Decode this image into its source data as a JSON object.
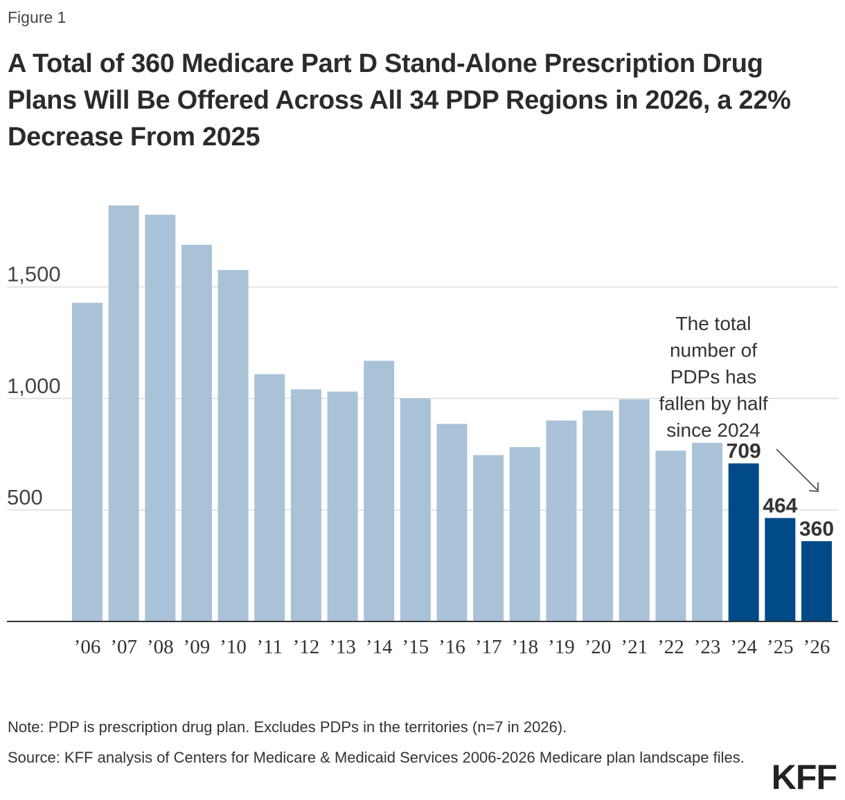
{
  "figure_label": "Figure 1",
  "title": "A Total of 360 Medicare Part D Stand-Alone Prescription Drug Plans Will Be Offered Across All 34 PDP Regions in 2026, a 22% Decrease From 2025",
  "note": "Note: PDP is prescription drug plan. Excludes PDPs in the territories (n=7 in 2026).",
  "source": "Source: KFF analysis of Centers for Medicare & Medicaid Services 2006-2026 Medicare plan landscape files.",
  "logo": "KFF",
  "colors": {
    "light_bar": "#a9c2d7",
    "dark_bar": "#004b87",
    "grid": "#cccccc",
    "axis": "#333333"
  },
  "chart_data": {
    "type": "bar",
    "title": "A Total of 360 Medicare Part D Stand-Alone Prescription Drug Plans Will Be Offered Across All 34 PDP Regions in 2026, a 22% Decrease From 2025",
    "categories": [
      "’06",
      "’07",
      "’08",
      "’09",
      "’10",
      "’11",
      "’12",
      "’13",
      "’14",
      "’15",
      "’16",
      "’17",
      "’18",
      "’19",
      "’20",
      "’21",
      "’22",
      "’23",
      "’24",
      "’25",
      "’26"
    ],
    "values": [
      1429,
      1866,
      1824,
      1689,
      1576,
      1109,
      1041,
      1031,
      1169,
      1001,
      886,
      746,
      782,
      901,
      946,
      996,
      766,
      801,
      709,
      464,
      360
    ],
    "highlighted": [
      "’24",
      "’25",
      "’26"
    ],
    "data_labels": {
      "’24": "709",
      "’25": "464",
      "’26": "360"
    },
    "ylim": [
      0,
      1870
    ],
    "yticks": [
      500,
      1000,
      1500
    ],
    "ytick_labels": [
      "500",
      "1,000",
      "1,500"
    ],
    "xlabel": "",
    "ylabel": "",
    "annotation": {
      "lines": [
        "The total",
        "number of",
        "PDPs has",
        "fallen by half",
        "since 2024"
      ]
    }
  }
}
